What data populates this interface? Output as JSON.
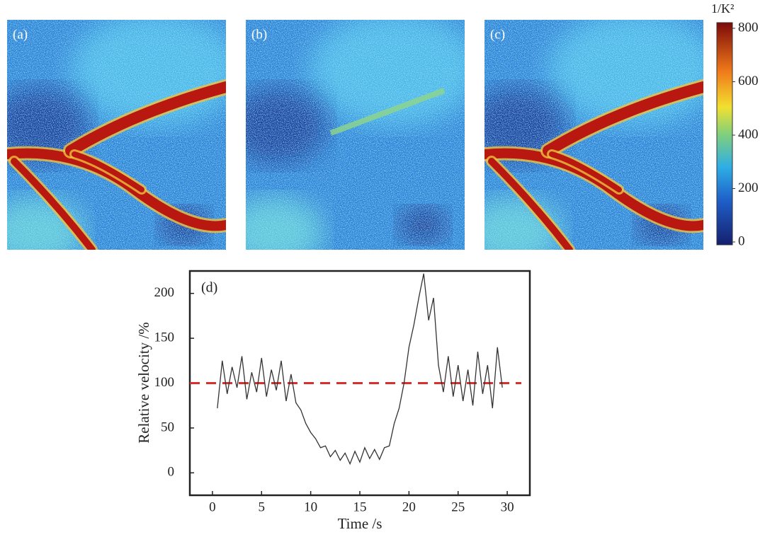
{
  "panels": {
    "labels": [
      "(a)",
      "(b)",
      "(c)"
    ]
  },
  "colorbar": {
    "label": "1/K²",
    "lim": [
      0,
      800
    ],
    "ticks": [
      0,
      200,
      400,
      600,
      800
    ]
  },
  "chart_data": {
    "type": "line",
    "annotation": "(d)",
    "xlabel": "Time /s",
    "ylabel": "Relative velocity /%",
    "xlim": [
      -2.3,
      32.3
    ],
    "ylim": [
      -25,
      225
    ],
    "xticks": [
      0,
      5,
      10,
      15,
      20,
      25,
      30
    ],
    "yticks": [
      0,
      50,
      100,
      150,
      200
    ],
    "reference_line": {
      "value": 100,
      "color": "#d9302c"
    },
    "series": [
      {
        "color": "#333333",
        "x": [
          0.5,
          1,
          1.5,
          2,
          2.5,
          3,
          3.5,
          4,
          4.5,
          5,
          5.5,
          6,
          6.5,
          7,
          7.5,
          8,
          8.5,
          9,
          9.5,
          10,
          10.5,
          11,
          11.5,
          12,
          12.5,
          13,
          13.5,
          14,
          14.5,
          15,
          15.5,
          16,
          16.5,
          17,
          17.5,
          18,
          18.5,
          19,
          19.5,
          20,
          20.5,
          21,
          21.5,
          22,
          22.5,
          23,
          23.5,
          24,
          24.5,
          25,
          25.5,
          26,
          26.5,
          27,
          27.5,
          28,
          28.5,
          29,
          29.5
        ],
        "values": [
          72,
          125,
          88,
          118,
          95,
          130,
          82,
          112,
          90,
          128,
          85,
          115,
          92,
          125,
          80,
          110,
          78,
          70,
          55,
          45,
          38,
          28,
          30,
          18,
          25,
          14,
          22,
          10,
          24,
          12,
          28,
          16,
          26,
          15,
          28,
          30,
          55,
          72,
          100,
          140,
          165,
          195,
          222,
          170,
          195,
          120,
          90,
          130,
          85,
          120,
          80,
          115,
          75,
          135,
          88,
          120,
          72,
          140,
          95
        ]
      }
    ]
  }
}
